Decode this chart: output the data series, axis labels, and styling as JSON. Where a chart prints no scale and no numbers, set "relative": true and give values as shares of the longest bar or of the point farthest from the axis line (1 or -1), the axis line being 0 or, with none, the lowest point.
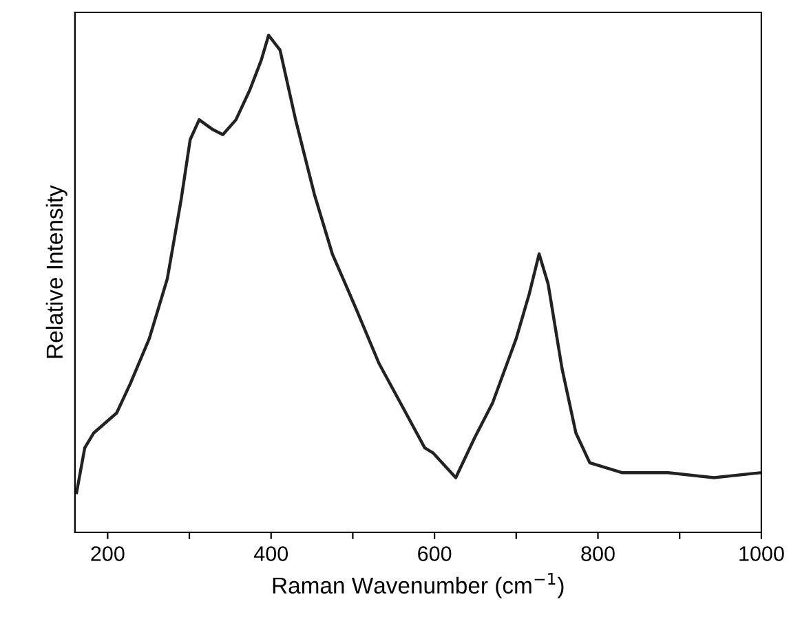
{
  "chart_data": {
    "type": "line",
    "xlabel": "Raman Wavenumber (cm$^{−1}$)",
    "ylabel": "Relative Intensity",
    "relative": true,
    "tick_labels": "x",
    "xlim": [
      160,
      1000
    ],
    "xticks": [
      200,
      {
        "value": 300,
        "label": null
      },
      400,
      {
        "value": 500,
        "label": null
      },
      600,
      {
        "value": 700,
        "label": null
      },
      800,
      {
        "value": 900,
        "label": null
      },
      1000
    ],
    "series": [
      {
        "color": "#222222",
        "x": [
          162,
          172,
          183,
          211,
          228,
          251,
          273,
          290,
          301,
          312,
          329,
          341,
          357,
          374,
          388,
          397,
          411,
          430,
          453,
          475,
          504,
          532,
          565,
          588,
          598,
          626,
          649,
          671,
          700,
          716,
          728,
          739,
          756,
          773,
          790,
          830,
          886,
          942,
          999
        ],
        "values": [
          0.08,
          0.17,
          0.2,
          0.24,
          0.3,
          0.39,
          0.51,
          0.67,
          0.79,
          0.83,
          0.81,
          0.8,
          0.83,
          0.89,
          0.95,
          1,
          0.97,
          0.83,
          0.68,
          0.56,
          0.45,
          0.34,
          0.24,
          0.17,
          0.16,
          0.11,
          0.19,
          0.26,
          0.39,
          0.48,
          0.56,
          0.5,
          0.33,
          0.2,
          0.14,
          0.12,
          0.12,
          0.11,
          0.12
        ]
      }
    ]
  }
}
